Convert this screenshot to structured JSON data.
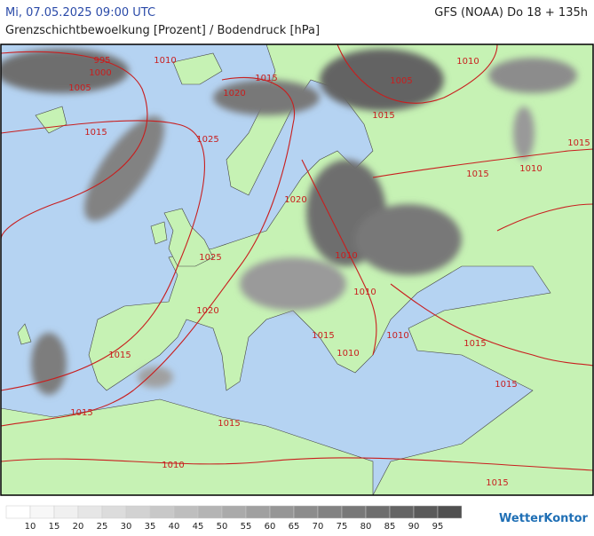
{
  "header": {
    "datetime": "Mi, 07.05.2025 09:00 UTC",
    "model": "GFS (NOAA) Do 18 + 135h",
    "title": "Grenzschichtbewoelkung [Prozent] / Bodendruck [hPa]"
  },
  "isobars": [
    995,
    1000,
    1005,
    1010,
    1015,
    1005,
    1010,
    1015,
    1020,
    1025,
    1015,
    1015,
    1015,
    1010,
    1020,
    1025,
    1010,
    1010,
    1020,
    1015,
    1010,
    1015,
    1010,
    1015,
    1015,
    1015,
    1015,
    1010,
    1015
  ],
  "legend": {
    "ticks": [
      10,
      15,
      20,
      25,
      30,
      35,
      40,
      45,
      50,
      55,
      60,
      65,
      70,
      75,
      80,
      85,
      90,
      95
    ],
    "colors": [
      "#ffffff",
      "#f7f7f7",
      "#f0f0f0",
      "#e6e6e6",
      "#dcdcdc",
      "#d2d2d2",
      "#c8c8c8",
      "#bebebe",
      "#b4b4b4",
      "#aaaaaa",
      "#a0a0a0",
      "#969696",
      "#8c8c8c",
      "#828282",
      "#787878",
      "#6e6e6e",
      "#646464",
      "#5a5a5a",
      "#505050"
    ]
  },
  "logo": "WetterKontor"
}
